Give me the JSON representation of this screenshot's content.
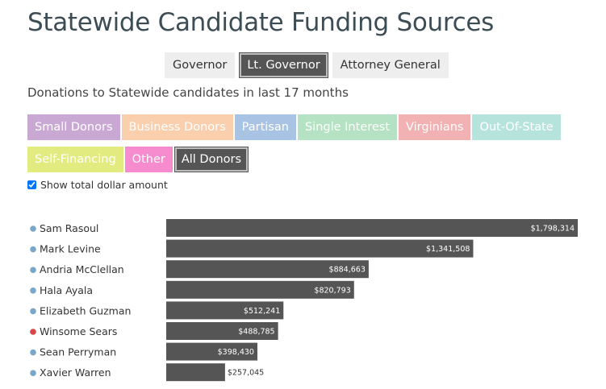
{
  "title": "Statewide Candidate Funding Sources",
  "office_tabs": [
    {
      "label": "Governor",
      "active": false
    },
    {
      "label": "Lt. Governor",
      "active": true
    },
    {
      "label": "Attorney General",
      "active": false
    }
  ],
  "subtitle": "Donations to Statewide candidates in last 17 months",
  "filters": [
    {
      "label": "Small Donors",
      "color": "#c9a8d4"
    },
    {
      "label": "Business Donors",
      "color": "#f9cfae"
    },
    {
      "label": "Partisan",
      "color": "#a9c3e4"
    },
    {
      "label": "Single Interest",
      "color": "#b5e2c2"
    },
    {
      "label": "Virginians",
      "color": "#f2b1b3"
    },
    {
      "label": "Out-Of-State",
      "color": "#b7e3dd"
    },
    {
      "label": "Self-Financing",
      "color": "#e1eb80"
    },
    {
      "label": "Other",
      "color": "#f68cce"
    },
    {
      "label": "All Donors",
      "color": "#555555",
      "active": true
    }
  ],
  "show_total_label": "Show total dollar amount",
  "show_total_checked": true,
  "party_colors": {
    "D": "#7aa7c7",
    "R": "#d7464a"
  },
  "bar_color": "#555555",
  "chart_data": {
    "type": "bar",
    "orientation": "horizontal",
    "xlim": [
      0,
      1798314
    ],
    "categories": [
      "Sam Rasoul",
      "Mark Levine",
      "Andria McClellan",
      "Hala Ayala",
      "Elizabeth Guzman",
      "Winsome Sears",
      "Sean Perryman",
      "Xavier Warren"
    ],
    "party": [
      "D",
      "D",
      "D",
      "D",
      "D",
      "R",
      "D",
      "D"
    ],
    "values": [
      1798314,
      1341508,
      884663,
      820793,
      512241,
      488785,
      398430,
      257045
    ],
    "value_labels": [
      "$1,798,314",
      "$1,341,508",
      "$884,663",
      "$820,793",
      "$512,241",
      "$488,785",
      "$398,430",
      "$257,045"
    ]
  }
}
